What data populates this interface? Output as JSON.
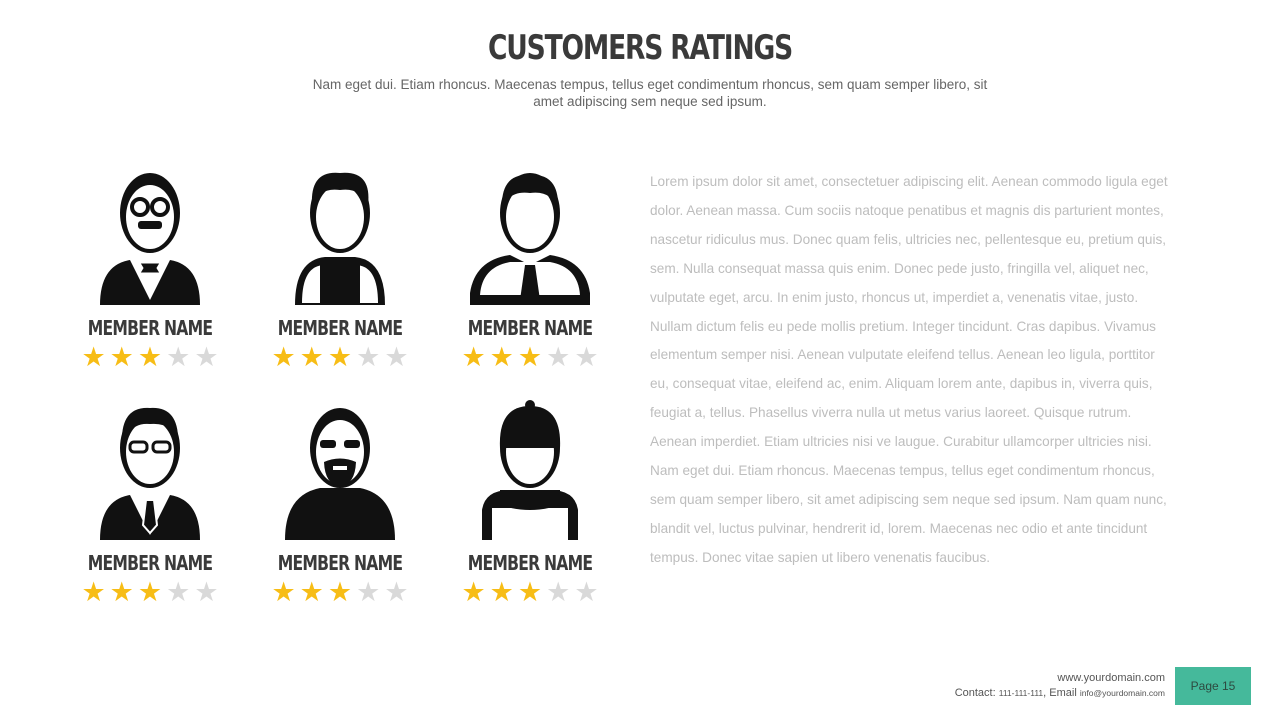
{
  "header": {
    "title": "CUSTOMERS RATINGS",
    "subtitle": "Nam eget dui. Etiam rhoncus. Maecenas tempus, tellus eget condimentum  rhoncus, sem quam semper libero, sit amet adipiscing sem neque  sed ipsum."
  },
  "members": [
    {
      "name": "MEMBER NAME",
      "rating": 3,
      "max": 5,
      "icon": "old-man-bowtie-avatar"
    },
    {
      "name": "MEMBER NAME",
      "rating": 3,
      "max": 5,
      "icon": "curly-hair-avatar"
    },
    {
      "name": "MEMBER NAME",
      "rating": 3,
      "max": 5,
      "icon": "businessman-tie-avatar"
    },
    {
      "name": "MEMBER NAME",
      "rating": 3,
      "max": 5,
      "icon": "glasses-suit-avatar"
    },
    {
      "name": "MEMBER NAME",
      "rating": 3,
      "max": 5,
      "icon": "bearded-man-avatar"
    },
    {
      "name": "MEMBER NAME",
      "rating": 3,
      "max": 5,
      "icon": "worker-cap-avatar"
    }
  ],
  "body_text": "Lorem ipsum dolor sit amet,  consectetuer adipiscing elit. Aenean commodo ligula eget dolor.  Aenean massa. Cum sociis natoque penatibus et magnis dis parturient  montes, nascetur ridiculus mus.  Donec quam felis, ultricies nec, pellentesque eu,  pretium quis, sem.  Nulla consequat massa quis enim. Donec pede justo, fringilla vel, aliquet nec, vulputate eget, arcu. In enim justo, rhoncus ut, imperdiet  a, venenatis vitae, justo. Nullam dictum felis eu pede mollis pretium.  Integer tincidunt.  Cras dapibus. Vivamus elementum  semper nisi. Aenean vulputate eleifend tellus. Aenean leo ligula, porttitor eu, consequat vitae, eleifend ac, enim. Aliquam lorem ante, dapibus in, viverra quis, feugiat a, tellus. Phasellus viverra nulla ut metus varius laoreet. Quisque rutrum.  Aenean imperdiet.  Etiam ultricies nisi ve laugue. Curabitur ullamcorper ultricies nisi. Nam eget dui. Etiam rhoncus. Maecenas tempus, tellus eget condimentum rhoncus, sem quam semper libero, sit amet adipiscing sem neque sed ipsum. Nam quam nunc, blandit vel, luctus pulvinar, hendrerit id, lorem. Maecenas nec odio et ante tincidunt tempus.  Donec vitae sapien ut libero venenatis faucibus.",
  "footer": {
    "website": "www.yourdomain.com",
    "contact_label": "Contact: ",
    "phone": "111-111-111",
    "email_label": ", Email ",
    "email": "info@yourdomain.com",
    "page": "Page 15"
  },
  "colors": {
    "accent": "#45b99b",
    "star_on": "#f7bd16",
    "star_off": "#d9d9d9"
  }
}
